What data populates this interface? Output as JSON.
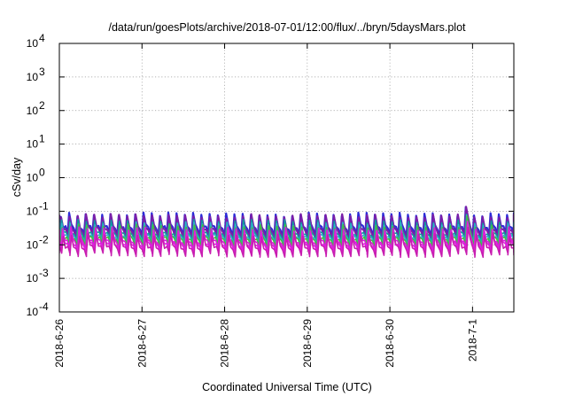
{
  "chart_data": {
    "type": "line",
    "title": "/data/run/goesPlots/archive/2018-07-01/12:00/flux/../bryn/5daysMars.plot",
    "xlabel": "Coordinated Universal Time (UTC)",
    "ylabel": "cSv/day",
    "yscale": "log",
    "ylim": [
      0.0001,
      10000
    ],
    "y_ticks": [
      {
        "base": "10",
        "exp": "4",
        "value": 10000
      },
      {
        "base": "10",
        "exp": "3",
        "value": 1000
      },
      {
        "base": "10",
        "exp": "2",
        "value": 100
      },
      {
        "base": "10",
        "exp": "1",
        "value": 10
      },
      {
        "base": "10",
        "exp": "0",
        "value": 1
      },
      {
        "base": "10",
        "exp": "-1",
        "value": 0.1
      },
      {
        "base": "10",
        "exp": "-2",
        "value": 0.01
      },
      {
        "base": "10",
        "exp": "-3",
        "value": 0.001
      },
      {
        "base": "10",
        "exp": "-4",
        "value": 0.0001
      }
    ],
    "xlim": [
      "2018-06-26 00:00",
      "2018-07-01 12:00"
    ],
    "x_ticks": [
      "2018-6-26",
      "2018-6-27",
      "2018-6-28",
      "2018-6-29",
      "2018-6-30",
      "2018-7-1"
    ],
    "grid": true,
    "legend": "none",
    "pattern": {
      "description_period_hours": 2.4,
      "peak_range": [
        0.055,
        0.08
      ],
      "trough_range": [
        0.006,
        0.02
      ]
    },
    "series": [
      {
        "color": "#2b2bd8",
        "peak": 0.08,
        "trough": 0.02
      },
      {
        "color": "#7a1fa8",
        "peak": 0.072,
        "trough": 0.016
      },
      {
        "color": "#0e9aa0",
        "peak": 0.05,
        "trough": 0.013
      },
      {
        "color": "#2fb0c8",
        "peak": 0.042,
        "trough": 0.011
      },
      {
        "color": "#3fbf3f",
        "peak": 0.036,
        "trough": 0.0095
      },
      {
        "color": "#d81fd8",
        "peak": 0.03,
        "trough": 0.0075
      },
      {
        "color": "#e020e0",
        "peak": 0.025,
        "trough": 0.006
      },
      {
        "color": "#c81eb0",
        "peak": 0.02,
        "trough": 0.005
      }
    ]
  }
}
